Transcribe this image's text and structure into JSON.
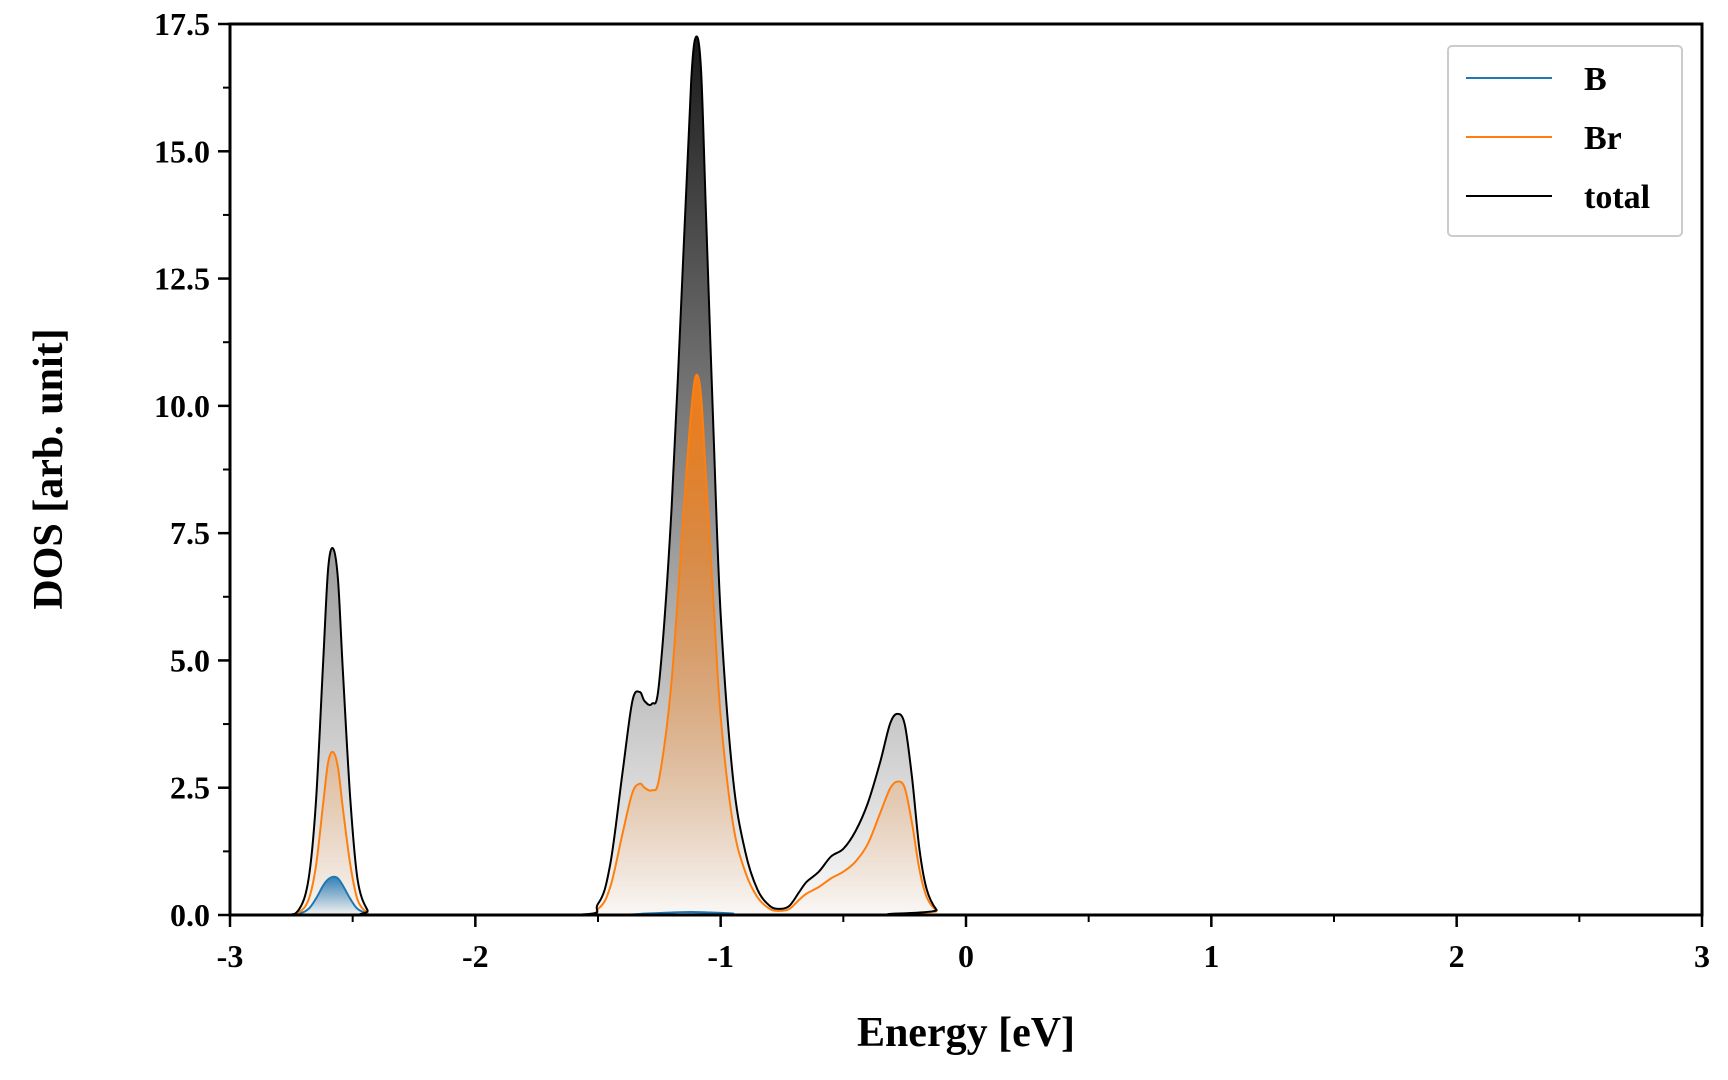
{
  "chart_data": {
    "type": "area",
    "xlabel": "Energy [eV]",
    "ylabel": "DOS [arb. unit]",
    "xlim": [
      -3,
      3
    ],
    "ylim": [
      0,
      17.5
    ],
    "xticks": [
      -3,
      -2,
      -1,
      0,
      1,
      2,
      3
    ],
    "xtick_labels": [
      "-3",
      "-2",
      "-1",
      "0",
      "1",
      "2",
      "3"
    ],
    "xminor_step": 0.5,
    "yticks": [
      0,
      2.5,
      5,
      7.5,
      10,
      12.5,
      15,
      17.5
    ],
    "ytick_labels": [
      "0.0",
      "2.5",
      "5.0",
      "7.5",
      "10.0",
      "12.5",
      "15.0",
      "17.5"
    ],
    "yminor_step": 1.25,
    "grid": false,
    "legend_position": "top-right",
    "series": [
      {
        "name": "B",
        "color": "#1f77b4",
        "x": [
          -3.0,
          -2.8,
          -2.72,
          -2.68,
          -2.65,
          -2.62,
          -2.6,
          -2.58,
          -2.56,
          -2.54,
          -2.51,
          -2.48,
          -2.44,
          -2.4,
          -1.5,
          -1.3,
          -1.2,
          -1.12,
          -1.05,
          -0.95,
          -0.85,
          3.0
        ],
        "y": [
          0,
          0,
          0.03,
          0.12,
          0.32,
          0.58,
          0.7,
          0.75,
          0.72,
          0.58,
          0.32,
          0.12,
          0.03,
          0,
          0,
          0.03,
          0.05,
          0.06,
          0.05,
          0.03,
          0,
          0
        ]
      },
      {
        "name": "Br",
        "color": "#ff7f0e",
        "x": [
          -3.0,
          -2.78,
          -2.72,
          -2.68,
          -2.65,
          -2.62,
          -2.6,
          -2.58,
          -2.56,
          -2.54,
          -2.51,
          -2.48,
          -2.44,
          -2.4,
          -1.6,
          -1.5,
          -1.45,
          -1.4,
          -1.36,
          -1.33,
          -1.31,
          -1.28,
          -1.25,
          -1.2,
          -1.15,
          -1.12,
          -1.1,
          -1.08,
          -1.06,
          -1.03,
          -1.0,
          -0.95,
          -0.9,
          -0.85,
          -0.8,
          -0.76,
          -0.72,
          -0.68,
          -0.65,
          -0.6,
          -0.55,
          -0.5,
          -0.45,
          -0.4,
          -0.35,
          -0.31,
          -0.28,
          -0.25,
          -0.22,
          -0.19,
          -0.16,
          -0.12,
          -0.08,
          3.0
        ],
        "y": [
          0,
          0,
          0.05,
          0.3,
          0.95,
          2.2,
          3.0,
          3.2,
          2.9,
          2.1,
          1.0,
          0.3,
          0.05,
          0,
          0,
          0.12,
          0.55,
          1.6,
          2.4,
          2.58,
          2.5,
          2.45,
          2.7,
          4.6,
          8.0,
          9.9,
          10.6,
          10.2,
          8.6,
          6.2,
          3.9,
          1.8,
          0.85,
          0.35,
          0.12,
          0.08,
          0.12,
          0.3,
          0.42,
          0.55,
          0.72,
          0.85,
          1.05,
          1.4,
          2.0,
          2.48,
          2.62,
          2.5,
          1.8,
          0.9,
          0.35,
          0.08,
          0,
          0
        ]
      },
      {
        "name": "total",
        "color": "#000000",
        "x": [
          -3.0,
          -2.78,
          -2.72,
          -2.68,
          -2.65,
          -2.62,
          -2.6,
          -2.58,
          -2.56,
          -2.54,
          -2.51,
          -2.48,
          -2.44,
          -2.4,
          -1.6,
          -1.5,
          -1.45,
          -1.4,
          -1.36,
          -1.33,
          -1.31,
          -1.28,
          -1.25,
          -1.2,
          -1.15,
          -1.12,
          -1.1,
          -1.08,
          -1.06,
          -1.03,
          -1.0,
          -0.95,
          -0.9,
          -0.85,
          -0.8,
          -0.76,
          -0.72,
          -0.68,
          -0.65,
          -0.6,
          -0.55,
          -0.5,
          -0.45,
          -0.4,
          -0.35,
          -0.31,
          -0.28,
          -0.25,
          -0.22,
          -0.19,
          -0.16,
          -0.12,
          -0.08,
          3.0
        ],
        "y": [
          0,
          0,
          0.1,
          0.7,
          2.2,
          5.0,
          6.8,
          7.2,
          6.6,
          4.8,
          2.3,
          0.7,
          0.1,
          0,
          0,
          0.22,
          1.0,
          2.8,
          4.2,
          4.38,
          4.2,
          4.15,
          4.6,
          8.0,
          13.2,
          16.4,
          17.25,
          16.6,
          13.8,
          9.6,
          5.9,
          2.7,
          1.25,
          0.5,
          0.18,
          0.12,
          0.18,
          0.45,
          0.65,
          0.85,
          1.15,
          1.3,
          1.65,
          2.2,
          3.0,
          3.75,
          3.95,
          3.75,
          2.7,
          1.3,
          0.5,
          0.1,
          0,
          0
        ]
      }
    ]
  }
}
